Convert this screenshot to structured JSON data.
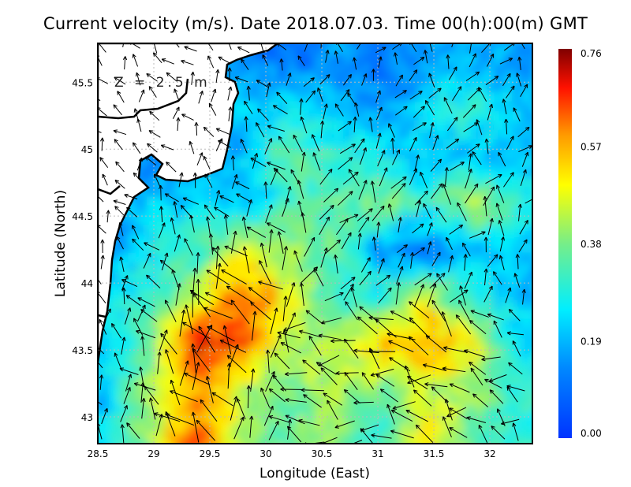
{
  "chart_data": {
    "type": "heatmap",
    "title": "Current velocity (m/s). Date 2018.07.03. Time 00(h):00(m) GMT",
    "annotation": "Z = 2.5 m",
    "xlabel": "Longitude (East)",
    "ylabel": "Latitude (North)",
    "xlim": [
      28.5,
      32.38
    ],
    "ylim": [
      42.8,
      45.79
    ],
    "xticks": [
      "28.5",
      "29",
      "29.5",
      "30",
      "30.5",
      "31",
      "31.5",
      "32"
    ],
    "xtick_values": [
      28.5,
      29,
      29.5,
      30,
      30.5,
      31,
      31.5,
      32
    ],
    "yticks": [
      "43",
      "43.5",
      "44",
      "44.5",
      "45",
      "45.5"
    ],
    "ytick_values": [
      43,
      43.5,
      44,
      44.5,
      45,
      45.5
    ],
    "grid": true,
    "colorbar": {
      "ticks": [
        "0.00",
        "0.19",
        "0.38",
        "0.57",
        "0.76"
      ],
      "range": [
        0,
        0.76
      ],
      "colormap": "jet"
    },
    "speed_grid_lat": [
      45.6,
      45.25,
      44.9,
      44.55,
      44.2,
      43.85,
      43.5,
      43.15,
      42.9
    ],
    "speed_grid_lon": [
      28.6,
      29.0,
      29.4,
      29.8,
      30.2,
      30.6,
      31.0,
      31.4,
      31.8,
      32.2
    ],
    "speed_grid": [
      [
        null,
        null,
        null,
        0.15,
        0.1,
        0.15,
        0.1,
        0.15,
        0.2,
        0.15
      ],
      [
        null,
        null,
        null,
        0.2,
        0.25,
        0.2,
        0.15,
        0.25,
        0.3,
        0.2
      ],
      [
        null,
        null,
        0.15,
        0.2,
        0.35,
        0.3,
        0.25,
        0.2,
        0.2,
        0.2
      ],
      [
        0.1,
        0.2,
        0.25,
        0.2,
        0.3,
        0.35,
        0.4,
        0.3,
        0.45,
        0.3
      ],
      [
        0.15,
        0.25,
        0.3,
        0.45,
        0.4,
        0.35,
        0.15,
        0.1,
        0.2,
        0.2
      ],
      [
        0.2,
        0.3,
        0.45,
        0.65,
        0.5,
        0.3,
        0.3,
        0.45,
        0.3,
        0.2
      ],
      [
        0.25,
        0.35,
        0.7,
        0.65,
        0.45,
        0.4,
        0.55,
        0.6,
        0.5,
        0.25
      ],
      [
        0.2,
        0.4,
        0.6,
        0.45,
        0.35,
        0.45,
        0.35,
        0.45,
        0.4,
        0.3
      ],
      [
        0.25,
        0.4,
        0.65,
        0.4,
        0.35,
        0.4,
        0.3,
        0.5,
        0.35,
        0.3
      ]
    ]
  }
}
